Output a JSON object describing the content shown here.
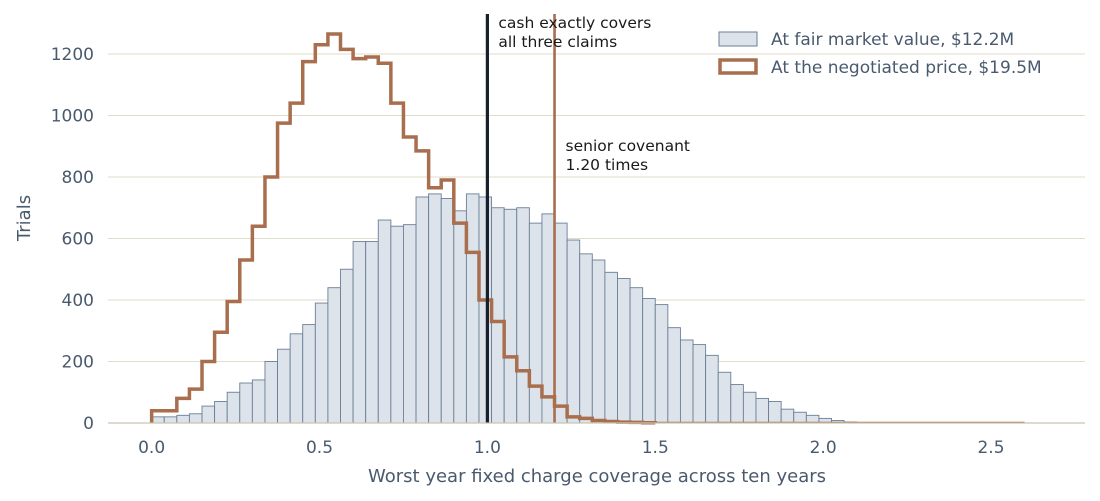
{
  "chart_data": {
    "type": "bar",
    "xlabel": "Worst year fixed charge coverage across ten years",
    "ylabel": "Trials",
    "xlim": [
      -0.13,
      2.78
    ],
    "ylim": [
      0,
      1330
    ],
    "xticks": [
      0.0,
      0.5,
      1.0,
      1.5,
      2.0,
      2.5
    ],
    "xtick_labels": [
      "0.0",
      "0.5",
      "1.0",
      "1.5",
      "2.0",
      "2.5"
    ],
    "yticks": [
      0,
      200,
      400,
      600,
      800,
      1000,
      1200
    ],
    "ytick_labels": [
      "0",
      "200",
      "400",
      "600",
      "800",
      "1000",
      "1200"
    ],
    "grid": "horizontal",
    "legend_placement": "top-right",
    "colors": {
      "hist_fill": "#dde3eb",
      "hist_edge": "#6b7f96",
      "step": "#a86e4e",
      "cash_line": "#17202a",
      "covenant_line": "#a86e4e",
      "grid": "#e2ddc9",
      "text": "#4a5a6e"
    },
    "series": [
      {
        "name": "At fair market value, $12.2M",
        "style": "filled-histogram",
        "bin_start": 0.0,
        "bin_width": 0.0375,
        "counts": [
          20,
          20,
          25,
          30,
          55,
          70,
          100,
          130,
          140,
          200,
          240,
          290,
          320,
          390,
          440,
          500,
          590,
          590,
          660,
          640,
          645,
          735,
          745,
          730,
          690,
          745,
          735,
          700,
          695,
          700,
          650,
          680,
          650,
          595,
          550,
          530,
          490,
          470,
          440,
          405,
          385,
          310,
          270,
          255,
          220,
          165,
          125,
          100,
          80,
          70,
          45,
          35,
          25,
          15,
          8,
          3,
          1,
          1,
          1,
          1,
          0,
          0,
          0,
          0,
          0,
          0,
          0,
          0,
          0,
          0,
          0,
          0,
          0,
          0,
          0,
          0,
          0,
          0,
          0,
          0
        ]
      },
      {
        "name": "At the negotiated price, $19.5M",
        "style": "step",
        "bin_start": 0.0,
        "bin_width": 0.0375,
        "counts": [
          40,
          40,
          80,
          110,
          200,
          295,
          395,
          530,
          640,
          800,
          975,
          1040,
          1175,
          1230,
          1265,
          1215,
          1185,
          1190,
          1170,
          1040,
          930,
          885,
          765,
          790,
          650,
          555,
          400,
          330,
          215,
          170,
          120,
          85,
          55,
          20,
          15,
          8,
          5,
          3,
          2,
          1
        ]
      }
    ],
    "vlines": [
      {
        "x": 1.0,
        "label": "cash exactly covers\nall three claims",
        "color": "#17202a"
      },
      {
        "x": 1.2,
        "label": "senior covenant\n1.20 times",
        "color": "#a86e4e"
      }
    ]
  }
}
